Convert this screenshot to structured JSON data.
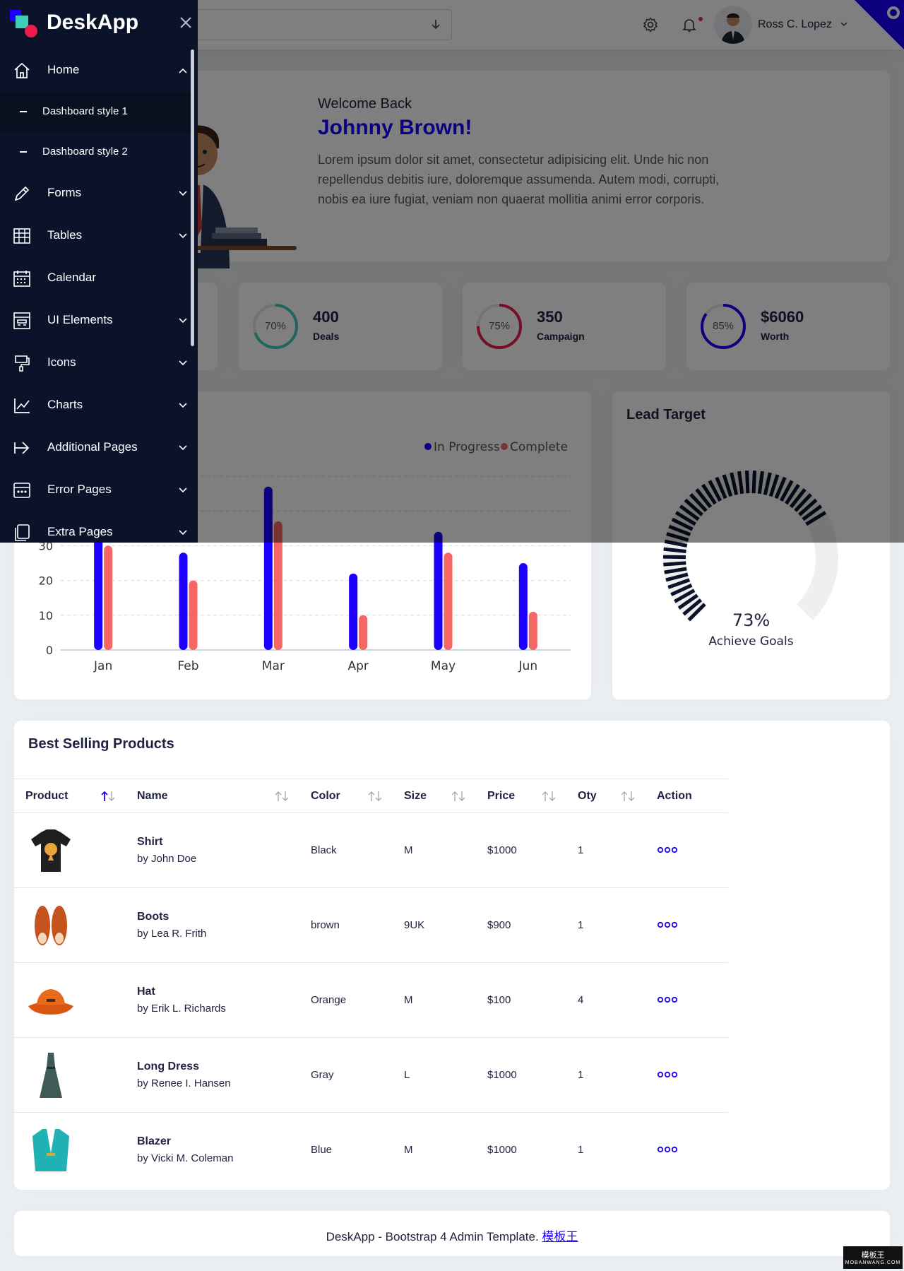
{
  "app": {
    "brand": "DeskApp"
  },
  "header": {
    "user_name": "Ross C. Lopez"
  },
  "sidebar": {
    "items": [
      {
        "label": "Home",
        "icon": "home-icon",
        "expanded": true
      },
      {
        "label": "Forms",
        "icon": "pencil-icon"
      },
      {
        "label": "Tables",
        "icon": "table-icon"
      },
      {
        "label": "Calendar",
        "icon": "calendar-icon"
      },
      {
        "label": "UI Elements",
        "icon": "layout-icon"
      },
      {
        "label": "Icons",
        "icon": "paint-brush-icon"
      },
      {
        "label": "Charts",
        "icon": "line-chart-icon"
      },
      {
        "label": "Additional Pages",
        "icon": "arrow-right-icon"
      },
      {
        "label": "Error Pages",
        "icon": "browser-error-icon"
      },
      {
        "label": "Extra Pages",
        "icon": "copy-icon"
      }
    ],
    "home_subitems": [
      "Dashboard style 1",
      "Dashboard style 2"
    ]
  },
  "welcome": {
    "greeting": "Welcome Back",
    "name": "Johnny Brown!",
    "text": "Lorem ipsum dolor sit amet, consectetur adipisicing elit. Unde hic non repellendus debitis iure, doloremque assumenda. Autem modi, corrupti, nobis ea iure fugiat, veniam non quaerat mollitia animi error corporis."
  },
  "stats": [
    {
      "percent": "70%",
      "value": "400",
      "label": "Deals",
      "color": "#41ccba",
      "fraction": 0.7
    },
    {
      "percent": "75%",
      "value": "350",
      "label": "Campaign",
      "color": "#ed1c4a",
      "fraction": 0.75
    },
    {
      "percent": "85%",
      "value": "$6060",
      "label": "Worth",
      "color": "#1b00ff",
      "fraction": 0.85
    }
  ],
  "lead_target": {
    "title": "Lead Target",
    "percent": "73%",
    "label": "Achieve Goals",
    "fraction": 0.73
  },
  "chart_data": {
    "type": "bar",
    "categories": [
      "Jan",
      "Feb",
      "Mar",
      "Apr",
      "May",
      "Jun"
    ],
    "series": [
      {
        "name": "In Progress",
        "color": "#1b00ff",
        "values": [
          35,
          28,
          47,
          22,
          34,
          25
        ]
      },
      {
        "name": "Complete",
        "color": "#f56767",
        "values": [
          30,
          20,
          37,
          10,
          28,
          11
        ]
      }
    ],
    "y_ticks": [
      0,
      10,
      20,
      30
    ],
    "ylim": [
      0,
      50
    ],
    "legend_position": "top-right",
    "grid": true
  },
  "products": {
    "title": "Best Selling Products",
    "columns": [
      "Product",
      "Name",
      "Color",
      "Size",
      "Price",
      "Oty",
      "Action"
    ],
    "rows": [
      {
        "name": "Shirt",
        "by": "by John Doe",
        "color": "Black",
        "size": "M",
        "price": "$1000",
        "qty": "1",
        "image": "shirt"
      },
      {
        "name": "Boots",
        "by": "by Lea R. Frith",
        "color": "brown",
        "size": "9UK",
        "price": "$900",
        "qty": "1",
        "image": "boots"
      },
      {
        "name": "Hat",
        "by": "by Erik L. Richards",
        "color": "Orange",
        "size": "M",
        "price": "$100",
        "qty": "4",
        "image": "hat"
      },
      {
        "name": "Long Dress",
        "by": "by Renee I. Hansen",
        "color": "Gray",
        "size": "L",
        "price": "$1000",
        "qty": "1",
        "image": "dress"
      },
      {
        "name": "Blazer",
        "by": "by Vicki M. Coleman",
        "color": "Blue",
        "size": "M",
        "price": "$1000",
        "qty": "1",
        "image": "blazer"
      }
    ]
  },
  "footer": {
    "text": "DeskApp - Bootstrap 4 Admin Template.",
    "link": "模板王"
  },
  "watermark": {
    "line1": "模板王",
    "line2": "MOBANWANG.COM"
  }
}
